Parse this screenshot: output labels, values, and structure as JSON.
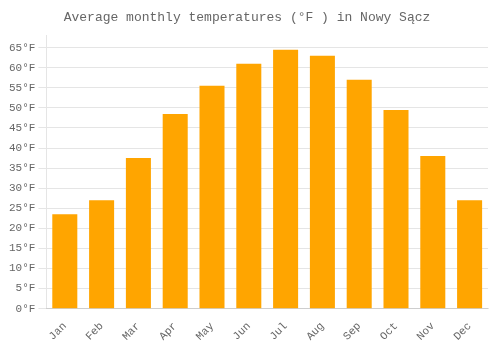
{
  "chart_data": {
    "type": "bar",
    "title": "Average monthly temperatures (°F ) in Nowy Sącz",
    "categories": [
      "Jan",
      "Feb",
      "Mar",
      "Apr",
      "May",
      "Jun",
      "Jul",
      "Aug",
      "Sep",
      "Oct",
      "Nov",
      "Dec"
    ],
    "values": [
      23.5,
      27,
      37.5,
      48.5,
      55.5,
      61,
      64.5,
      63,
      57,
      49.5,
      38,
      27
    ],
    "color": "#FFA500",
    "ylim": [
      0,
      68
    ],
    "yticks": [
      {
        "value": 0,
        "label": "0°F"
      },
      {
        "value": 5,
        "label": "5°F"
      },
      {
        "value": 10,
        "label": "10°F"
      },
      {
        "value": 15,
        "label": "15°F"
      },
      {
        "value": 20,
        "label": "20°F"
      },
      {
        "value": 25,
        "label": "25°F"
      },
      {
        "value": 30,
        "label": "30°F"
      },
      {
        "value": 35,
        "label": "35°F"
      },
      {
        "value": 40,
        "label": "40°F"
      },
      {
        "value": 45,
        "label": "45°F"
      },
      {
        "value": 50,
        "label": "50°F"
      },
      {
        "value": 55,
        "label": "55°F"
      },
      {
        "value": 60,
        "label": "60°F"
      },
      {
        "value": 65,
        "label": "65°F"
      }
    ],
    "grid": true
  }
}
